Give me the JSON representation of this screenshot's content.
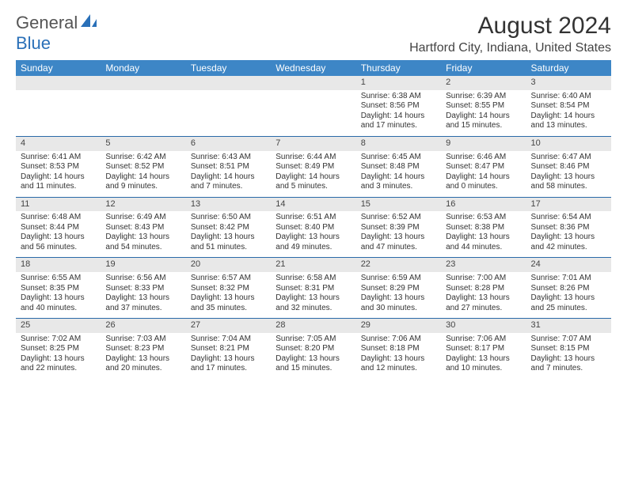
{
  "logo": {
    "text1": "General",
    "text2": "Blue"
  },
  "header": {
    "title": "August 2024",
    "location": "Hartford City, Indiana, United States"
  },
  "colors": {
    "header_bg": "#3d86c6",
    "header_text": "#ffffff",
    "daynum_bg": "#e8e8e8",
    "rule": "#2a6aa8",
    "logo_blue": "#2a70b8"
  },
  "dow": [
    "Sunday",
    "Monday",
    "Tuesday",
    "Wednesday",
    "Thursday",
    "Friday",
    "Saturday"
  ],
  "weeks": [
    [
      null,
      null,
      null,
      null,
      {
        "n": "1",
        "sr": "Sunrise: 6:38 AM",
        "ss": "Sunset: 8:56 PM",
        "d1": "Daylight: 14 hours",
        "d2": "and 17 minutes."
      },
      {
        "n": "2",
        "sr": "Sunrise: 6:39 AM",
        "ss": "Sunset: 8:55 PM",
        "d1": "Daylight: 14 hours",
        "d2": "and 15 minutes."
      },
      {
        "n": "3",
        "sr": "Sunrise: 6:40 AM",
        "ss": "Sunset: 8:54 PM",
        "d1": "Daylight: 14 hours",
        "d2": "and 13 minutes."
      }
    ],
    [
      {
        "n": "4",
        "sr": "Sunrise: 6:41 AM",
        "ss": "Sunset: 8:53 PM",
        "d1": "Daylight: 14 hours",
        "d2": "and 11 minutes."
      },
      {
        "n": "5",
        "sr": "Sunrise: 6:42 AM",
        "ss": "Sunset: 8:52 PM",
        "d1": "Daylight: 14 hours",
        "d2": "and 9 minutes."
      },
      {
        "n": "6",
        "sr": "Sunrise: 6:43 AM",
        "ss": "Sunset: 8:51 PM",
        "d1": "Daylight: 14 hours",
        "d2": "and 7 minutes."
      },
      {
        "n": "7",
        "sr": "Sunrise: 6:44 AM",
        "ss": "Sunset: 8:49 PM",
        "d1": "Daylight: 14 hours",
        "d2": "and 5 minutes."
      },
      {
        "n": "8",
        "sr": "Sunrise: 6:45 AM",
        "ss": "Sunset: 8:48 PM",
        "d1": "Daylight: 14 hours",
        "d2": "and 3 minutes."
      },
      {
        "n": "9",
        "sr": "Sunrise: 6:46 AM",
        "ss": "Sunset: 8:47 PM",
        "d1": "Daylight: 14 hours",
        "d2": "and 0 minutes."
      },
      {
        "n": "10",
        "sr": "Sunrise: 6:47 AM",
        "ss": "Sunset: 8:46 PM",
        "d1": "Daylight: 13 hours",
        "d2": "and 58 minutes."
      }
    ],
    [
      {
        "n": "11",
        "sr": "Sunrise: 6:48 AM",
        "ss": "Sunset: 8:44 PM",
        "d1": "Daylight: 13 hours",
        "d2": "and 56 minutes."
      },
      {
        "n": "12",
        "sr": "Sunrise: 6:49 AM",
        "ss": "Sunset: 8:43 PM",
        "d1": "Daylight: 13 hours",
        "d2": "and 54 minutes."
      },
      {
        "n": "13",
        "sr": "Sunrise: 6:50 AM",
        "ss": "Sunset: 8:42 PM",
        "d1": "Daylight: 13 hours",
        "d2": "and 51 minutes."
      },
      {
        "n": "14",
        "sr": "Sunrise: 6:51 AM",
        "ss": "Sunset: 8:40 PM",
        "d1": "Daylight: 13 hours",
        "d2": "and 49 minutes."
      },
      {
        "n": "15",
        "sr": "Sunrise: 6:52 AM",
        "ss": "Sunset: 8:39 PM",
        "d1": "Daylight: 13 hours",
        "d2": "and 47 minutes."
      },
      {
        "n": "16",
        "sr": "Sunrise: 6:53 AM",
        "ss": "Sunset: 8:38 PM",
        "d1": "Daylight: 13 hours",
        "d2": "and 44 minutes."
      },
      {
        "n": "17",
        "sr": "Sunrise: 6:54 AM",
        "ss": "Sunset: 8:36 PM",
        "d1": "Daylight: 13 hours",
        "d2": "and 42 minutes."
      }
    ],
    [
      {
        "n": "18",
        "sr": "Sunrise: 6:55 AM",
        "ss": "Sunset: 8:35 PM",
        "d1": "Daylight: 13 hours",
        "d2": "and 40 minutes."
      },
      {
        "n": "19",
        "sr": "Sunrise: 6:56 AM",
        "ss": "Sunset: 8:33 PM",
        "d1": "Daylight: 13 hours",
        "d2": "and 37 minutes."
      },
      {
        "n": "20",
        "sr": "Sunrise: 6:57 AM",
        "ss": "Sunset: 8:32 PM",
        "d1": "Daylight: 13 hours",
        "d2": "and 35 minutes."
      },
      {
        "n": "21",
        "sr": "Sunrise: 6:58 AM",
        "ss": "Sunset: 8:31 PM",
        "d1": "Daylight: 13 hours",
        "d2": "and 32 minutes."
      },
      {
        "n": "22",
        "sr": "Sunrise: 6:59 AM",
        "ss": "Sunset: 8:29 PM",
        "d1": "Daylight: 13 hours",
        "d2": "and 30 minutes."
      },
      {
        "n": "23",
        "sr": "Sunrise: 7:00 AM",
        "ss": "Sunset: 8:28 PM",
        "d1": "Daylight: 13 hours",
        "d2": "and 27 minutes."
      },
      {
        "n": "24",
        "sr": "Sunrise: 7:01 AM",
        "ss": "Sunset: 8:26 PM",
        "d1": "Daylight: 13 hours",
        "d2": "and 25 minutes."
      }
    ],
    [
      {
        "n": "25",
        "sr": "Sunrise: 7:02 AM",
        "ss": "Sunset: 8:25 PM",
        "d1": "Daylight: 13 hours",
        "d2": "and 22 minutes."
      },
      {
        "n": "26",
        "sr": "Sunrise: 7:03 AM",
        "ss": "Sunset: 8:23 PM",
        "d1": "Daylight: 13 hours",
        "d2": "and 20 minutes."
      },
      {
        "n": "27",
        "sr": "Sunrise: 7:04 AM",
        "ss": "Sunset: 8:21 PM",
        "d1": "Daylight: 13 hours",
        "d2": "and 17 minutes."
      },
      {
        "n": "28",
        "sr": "Sunrise: 7:05 AM",
        "ss": "Sunset: 8:20 PM",
        "d1": "Daylight: 13 hours",
        "d2": "and 15 minutes."
      },
      {
        "n": "29",
        "sr": "Sunrise: 7:06 AM",
        "ss": "Sunset: 8:18 PM",
        "d1": "Daylight: 13 hours",
        "d2": "and 12 minutes."
      },
      {
        "n": "30",
        "sr": "Sunrise: 7:06 AM",
        "ss": "Sunset: 8:17 PM",
        "d1": "Daylight: 13 hours",
        "d2": "and 10 minutes."
      },
      {
        "n": "31",
        "sr": "Sunrise: 7:07 AM",
        "ss": "Sunset: 8:15 PM",
        "d1": "Daylight: 13 hours",
        "d2": "and 7 minutes."
      }
    ]
  ]
}
